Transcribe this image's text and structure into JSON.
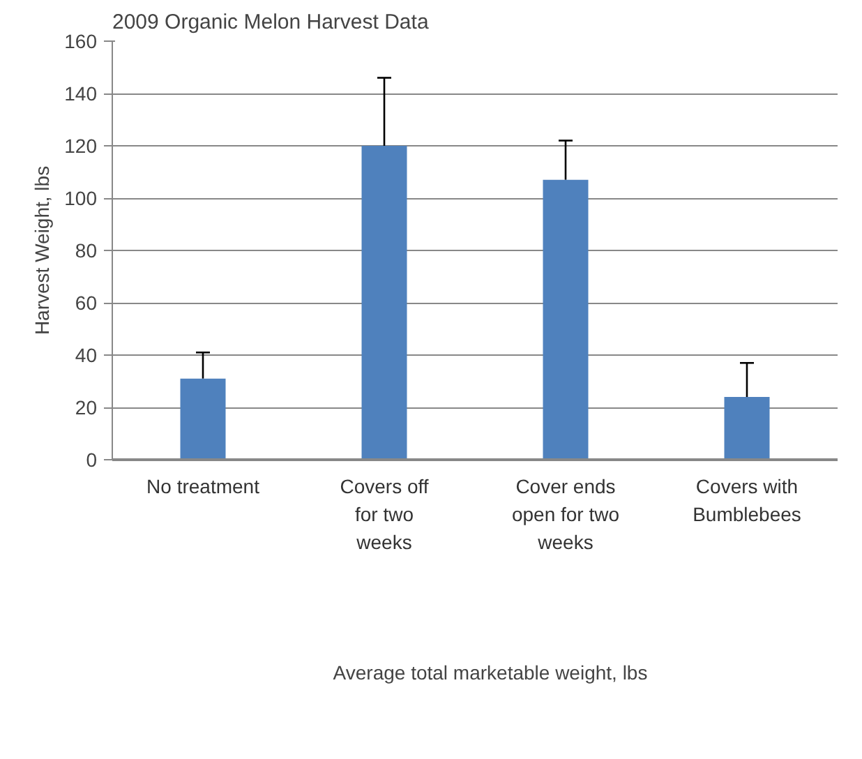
{
  "chart_data": {
    "type": "bar",
    "title": "2009 Organic Melon Harvest Data",
    "ylabel": "Harvest Weight, lbs",
    "categories": [
      "No treatment",
      "Covers off for two weeks",
      "Cover ends open for two weeks",
      "Covers with Bumblebees"
    ],
    "series": [
      {
        "name": "Average total marketable weight, lbs",
        "color": "#4f81bd",
        "values": [
          31,
          120,
          107,
          24
        ],
        "errors": [
          [
            31,
            41
          ],
          [
            120,
            146
          ],
          [
            107,
            122
          ],
          [
            24,
            37
          ]
        ]
      }
    ],
    "ylim": [
      0,
      160
    ],
    "yticks": [
      0,
      20,
      40,
      60,
      80,
      100,
      120,
      140,
      160
    ],
    "grid": "y",
    "legend": "bottom"
  }
}
